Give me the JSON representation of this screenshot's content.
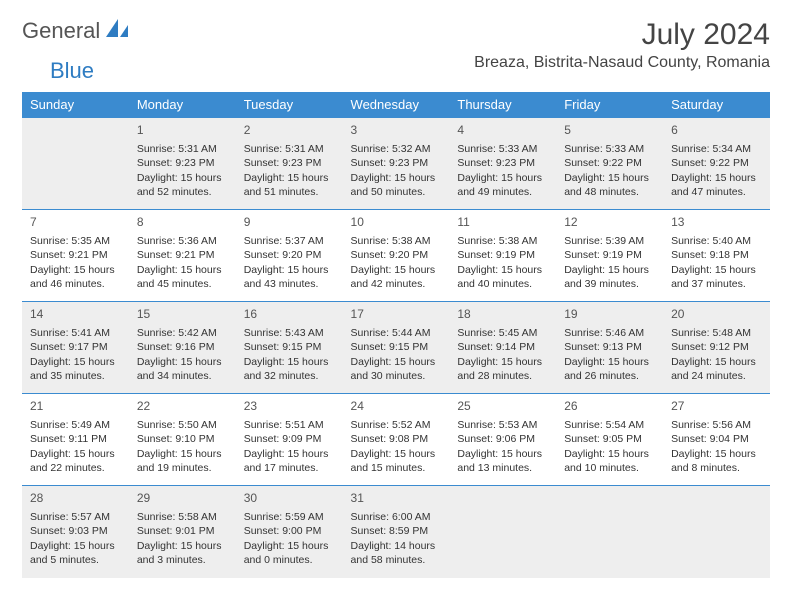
{
  "logo": {
    "part1": "General",
    "part2": "Blue"
  },
  "title": "July 2024",
  "location": "Breaza, Bistrita-Nasaud County, Romania",
  "day_headers": [
    "Sunday",
    "Monday",
    "Tuesday",
    "Wednesday",
    "Thursday",
    "Friday",
    "Saturday"
  ],
  "colors": {
    "accent": "#3b8bd0",
    "alt_row_bg": "#eeeeee",
    "text": "#333333"
  },
  "weeks": [
    [
      null,
      {
        "n": "1",
        "sr": "5:31 AM",
        "ss": "9:23 PM",
        "dl": "15 hours and 52 minutes."
      },
      {
        "n": "2",
        "sr": "5:31 AM",
        "ss": "9:23 PM",
        "dl": "15 hours and 51 minutes."
      },
      {
        "n": "3",
        "sr": "5:32 AM",
        "ss": "9:23 PM",
        "dl": "15 hours and 50 minutes."
      },
      {
        "n": "4",
        "sr": "5:33 AM",
        "ss": "9:23 PM",
        "dl": "15 hours and 49 minutes."
      },
      {
        "n": "5",
        "sr": "5:33 AM",
        "ss": "9:22 PM",
        "dl": "15 hours and 48 minutes."
      },
      {
        "n": "6",
        "sr": "5:34 AM",
        "ss": "9:22 PM",
        "dl": "15 hours and 47 minutes."
      }
    ],
    [
      {
        "n": "7",
        "sr": "5:35 AM",
        "ss": "9:21 PM",
        "dl": "15 hours and 46 minutes."
      },
      {
        "n": "8",
        "sr": "5:36 AM",
        "ss": "9:21 PM",
        "dl": "15 hours and 45 minutes."
      },
      {
        "n": "9",
        "sr": "5:37 AM",
        "ss": "9:20 PM",
        "dl": "15 hours and 43 minutes."
      },
      {
        "n": "10",
        "sr": "5:38 AM",
        "ss": "9:20 PM",
        "dl": "15 hours and 42 minutes."
      },
      {
        "n": "11",
        "sr": "5:38 AM",
        "ss": "9:19 PM",
        "dl": "15 hours and 40 minutes."
      },
      {
        "n": "12",
        "sr": "5:39 AM",
        "ss": "9:19 PM",
        "dl": "15 hours and 39 minutes."
      },
      {
        "n": "13",
        "sr": "5:40 AM",
        "ss": "9:18 PM",
        "dl": "15 hours and 37 minutes."
      }
    ],
    [
      {
        "n": "14",
        "sr": "5:41 AM",
        "ss": "9:17 PM",
        "dl": "15 hours and 35 minutes."
      },
      {
        "n": "15",
        "sr": "5:42 AM",
        "ss": "9:16 PM",
        "dl": "15 hours and 34 minutes."
      },
      {
        "n": "16",
        "sr": "5:43 AM",
        "ss": "9:15 PM",
        "dl": "15 hours and 32 minutes."
      },
      {
        "n": "17",
        "sr": "5:44 AM",
        "ss": "9:15 PM",
        "dl": "15 hours and 30 minutes."
      },
      {
        "n": "18",
        "sr": "5:45 AM",
        "ss": "9:14 PM",
        "dl": "15 hours and 28 minutes."
      },
      {
        "n": "19",
        "sr": "5:46 AM",
        "ss": "9:13 PM",
        "dl": "15 hours and 26 minutes."
      },
      {
        "n": "20",
        "sr": "5:48 AM",
        "ss": "9:12 PM",
        "dl": "15 hours and 24 minutes."
      }
    ],
    [
      {
        "n": "21",
        "sr": "5:49 AM",
        "ss": "9:11 PM",
        "dl": "15 hours and 22 minutes."
      },
      {
        "n": "22",
        "sr": "5:50 AM",
        "ss": "9:10 PM",
        "dl": "15 hours and 19 minutes."
      },
      {
        "n": "23",
        "sr": "5:51 AM",
        "ss": "9:09 PM",
        "dl": "15 hours and 17 minutes."
      },
      {
        "n": "24",
        "sr": "5:52 AM",
        "ss": "9:08 PM",
        "dl": "15 hours and 15 minutes."
      },
      {
        "n": "25",
        "sr": "5:53 AM",
        "ss": "9:06 PM",
        "dl": "15 hours and 13 minutes."
      },
      {
        "n": "26",
        "sr": "5:54 AM",
        "ss": "9:05 PM",
        "dl": "15 hours and 10 minutes."
      },
      {
        "n": "27",
        "sr": "5:56 AM",
        "ss": "9:04 PM",
        "dl": "15 hours and 8 minutes."
      }
    ],
    [
      {
        "n": "28",
        "sr": "5:57 AM",
        "ss": "9:03 PM",
        "dl": "15 hours and 5 minutes."
      },
      {
        "n": "29",
        "sr": "5:58 AM",
        "ss": "9:01 PM",
        "dl": "15 hours and 3 minutes."
      },
      {
        "n": "30",
        "sr": "5:59 AM",
        "ss": "9:00 PM",
        "dl": "15 hours and 0 minutes."
      },
      {
        "n": "31",
        "sr": "6:00 AM",
        "ss": "8:59 PM",
        "dl": "14 hours and 58 minutes."
      },
      null,
      null,
      null
    ]
  ]
}
